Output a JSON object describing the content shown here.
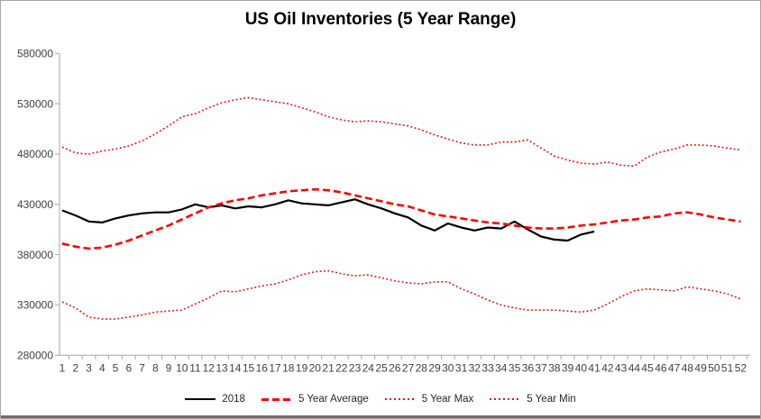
{
  "chart_data": {
    "type": "line",
    "title": "US Oil Inventories (5 Year Range)",
    "xlabel": "",
    "ylabel": "",
    "x_unit": "week of year",
    "y_unit": "thousand barrels",
    "ylim": [
      280000,
      580000
    ],
    "grid": false,
    "legend_position": "bottom",
    "axis_color": "#a6a6a6",
    "tick_label_color": "#404040",
    "yticks": [
      280000,
      330000,
      380000,
      430000,
      480000,
      530000,
      580000
    ],
    "xticks": [
      1,
      2,
      3,
      4,
      5,
      6,
      7,
      8,
      9,
      10,
      11,
      12,
      13,
      14,
      15,
      16,
      17,
      18,
      19,
      20,
      21,
      22,
      23,
      24,
      25,
      26,
      27,
      28,
      29,
      30,
      31,
      32,
      33,
      34,
      35,
      36,
      37,
      38,
      39,
      40,
      41,
      42,
      43,
      44,
      45,
      46,
      47,
      48,
      49,
      50,
      51,
      52
    ],
    "series": [
      {
        "name": "2018",
        "color": "#000000",
        "style": "solid",
        "values": [
          424000,
          419000,
          413000,
          412000,
          416000,
          419000,
          421000,
          422000,
          422000,
          425000,
          430000,
          427000,
          429000,
          426000,
          428000,
          427000,
          430000,
          434000,
          431000,
          430000,
          429000,
          432000,
          435000,
          430000,
          426000,
          421000,
          417000,
          409000,
          404000,
          411000,
          407000,
          404000,
          407000,
          406000,
          413000,
          405000,
          398000,
          395000,
          394000,
          400000,
          403000
        ]
      },
      {
        "name": "5 Year Average",
        "color": "#ff0000",
        "style": "dashed",
        "values": [
          391000,
          388000,
          386000,
          387000,
          390000,
          394000,
          399000,
          404000,
          409000,
          415000,
          421000,
          427000,
          431000,
          434000,
          436000,
          439000,
          441000,
          443000,
          444000,
          445000,
          444000,
          442000,
          439000,
          436000,
          433000,
          430000,
          428000,
          424000,
          420000,
          418000,
          416000,
          414000,
          412000,
          411000,
          409000,
          407000,
          406000,
          406000,
          407000,
          409000,
          410000,
          412000,
          414000,
          415000,
          417000,
          418000,
          421000,
          422000,
          420000,
          417000,
          415000,
          413000
        ]
      },
      {
        "name": "5 Year Max",
        "color": "#ff0000",
        "style": "dotted",
        "values": [
          487000,
          481000,
          480000,
          483000,
          485000,
          488000,
          493000,
          500000,
          508000,
          517000,
          520000,
          526000,
          531000,
          534000,
          536000,
          534000,
          532000,
          530000,
          526000,
          522000,
          517000,
          514000,
          512000,
          513000,
          512000,
          510000,
          508000,
          504000,
          499000,
          495000,
          491000,
          489000,
          489000,
          492000,
          492000,
          494000,
          486000,
          478000,
          474000,
          471000,
          470000,
          472000,
          469000,
          468000,
          477000,
          482000,
          485000,
          489000,
          489000,
          488000,
          486000,
          484000
        ]
      },
      {
        "name": "5 Year Min",
        "color": "#ff0000",
        "style": "dotted",
        "values": [
          333000,
          327000,
          318000,
          316000,
          316000,
          318000,
          320000,
          323000,
          324000,
          325000,
          331000,
          337000,
          344000,
          343000,
          346000,
          349000,
          351000,
          355000,
          360000,
          363000,
          364000,
          361000,
          359000,
          360000,
          357000,
          354000,
          352000,
          351000,
          353000,
          353000,
          346000,
          341000,
          335000,
          330000,
          327000,
          325000,
          325000,
          325000,
          324000,
          323000,
          325000,
          331000,
          338000,
          344000,
          346000,
          345000,
          344000,
          348000,
          346000,
          344000,
          341000,
          336000
        ]
      }
    ]
  }
}
